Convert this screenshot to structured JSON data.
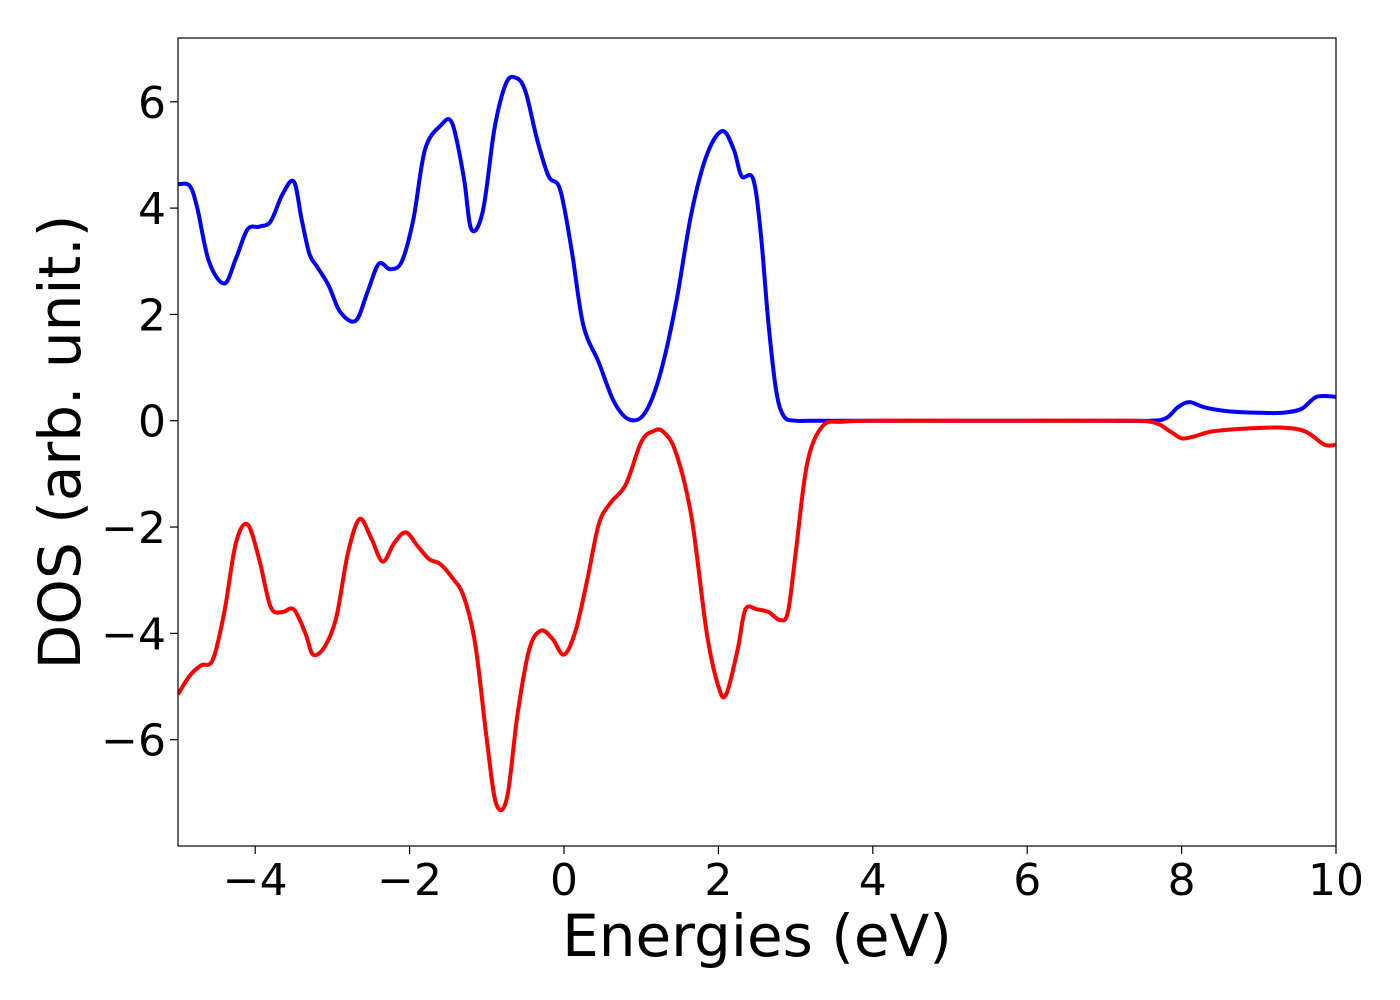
{
  "chart_data": {
    "type": "line",
    "xlabel": "Energies (eV)",
    "ylabel": "DOS (arb. unit.)",
    "xlim": [
      -5,
      10
    ],
    "ylim": [
      -8,
      7.2
    ],
    "grid": false,
    "x_ticks": [
      -4,
      -2,
      0,
      2,
      4,
      6,
      8,
      10
    ],
    "x_tick_labels": [
      "−4",
      "−2",
      "0",
      "2",
      "4",
      "6",
      "8",
      "10"
    ],
    "y_ticks": [
      -6,
      -4,
      -2,
      0,
      2,
      4,
      6
    ],
    "y_tick_labels": [
      "−6",
      "−4",
      "−2",
      "0",
      "2",
      "4",
      "6"
    ],
    "series": [
      {
        "color": "#0000ff",
        "x": [
          -5.0,
          -4.85,
          -4.75,
          -4.6,
          -4.4,
          -4.25,
          -4.1,
          -3.95,
          -3.8,
          -3.65,
          -3.5,
          -3.4,
          -3.3,
          -3.2,
          -3.05,
          -2.9,
          -2.7,
          -2.55,
          -2.4,
          -2.25,
          -2.1,
          -1.95,
          -1.8,
          -1.6,
          -1.45,
          -1.3,
          -1.2,
          -1.05,
          -0.9,
          -0.75,
          -0.62,
          -0.5,
          -0.35,
          -0.2,
          -0.05,
          0.1,
          0.25,
          0.45,
          0.65,
          0.85,
          1.05,
          1.25,
          1.45,
          1.65,
          1.85,
          2.05,
          2.2,
          2.3,
          2.45,
          2.55,
          2.65,
          2.75,
          2.85,
          3.0,
          3.2,
          3.5,
          4.0,
          5.0,
          6.0,
          7.0,
          7.6,
          7.8,
          7.95,
          8.1,
          8.3,
          8.6,
          9.0,
          9.3,
          9.55,
          9.75,
          10.0
        ],
        "y": [
          4.45,
          4.42,
          4.0,
          3.0,
          2.58,
          3.05,
          3.6,
          3.65,
          3.75,
          4.25,
          4.5,
          3.8,
          3.15,
          2.9,
          2.55,
          2.05,
          1.88,
          2.4,
          2.95,
          2.85,
          3.0,
          3.8,
          5.1,
          5.55,
          5.6,
          4.6,
          3.6,
          3.95,
          5.5,
          6.35,
          6.45,
          6.2,
          5.3,
          4.6,
          4.35,
          3.2,
          1.8,
          1.1,
          0.35,
          0.02,
          0.15,
          0.9,
          2.2,
          3.9,
          5.0,
          5.45,
          5.1,
          4.6,
          4.55,
          3.5,
          1.8,
          0.55,
          0.08,
          0.0,
          0.0,
          0.0,
          0.0,
          0.0,
          0.0,
          0.0,
          0.0,
          0.05,
          0.25,
          0.35,
          0.25,
          0.18,
          0.15,
          0.15,
          0.22,
          0.45,
          0.45
        ]
      },
      {
        "color": "#ff0000",
        "x": [
          -5.0,
          -4.85,
          -4.7,
          -4.55,
          -4.4,
          -4.25,
          -4.1,
          -3.95,
          -3.8,
          -3.65,
          -3.5,
          -3.35,
          -3.25,
          -3.1,
          -2.95,
          -2.8,
          -2.65,
          -2.5,
          -2.35,
          -2.2,
          -2.05,
          -1.9,
          -1.75,
          -1.6,
          -1.45,
          -1.3,
          -1.15,
          -1.0,
          -0.88,
          -0.74,
          -0.6,
          -0.45,
          -0.3,
          -0.15,
          0.0,
          0.15,
          0.3,
          0.45,
          0.6,
          0.8,
          1.0,
          1.15,
          1.28,
          1.45,
          1.65,
          1.85,
          2.0,
          2.1,
          2.25,
          2.35,
          2.5,
          2.65,
          2.8,
          2.9,
          3.0,
          3.15,
          3.35,
          3.6,
          4.0,
          5.0,
          6.0,
          7.0,
          7.6,
          7.85,
          8.0,
          8.15,
          8.4,
          8.8,
          9.3,
          9.6,
          9.85,
          10.0
        ],
        "y": [
          -5.15,
          -4.8,
          -4.6,
          -4.5,
          -3.6,
          -2.3,
          -1.95,
          -2.6,
          -3.5,
          -3.6,
          -3.55,
          -4.0,
          -4.4,
          -4.25,
          -3.7,
          -2.5,
          -1.85,
          -2.2,
          -2.65,
          -2.3,
          -2.1,
          -2.35,
          -2.6,
          -2.7,
          -2.95,
          -3.3,
          -4.2,
          -6.0,
          -7.2,
          -7.1,
          -5.5,
          -4.3,
          -3.95,
          -4.1,
          -4.4,
          -3.95,
          -3.0,
          -1.95,
          -1.55,
          -1.2,
          -0.4,
          -0.2,
          -0.2,
          -0.6,
          -1.8,
          -4.0,
          -5.0,
          -5.15,
          -4.3,
          -3.55,
          -3.55,
          -3.6,
          -3.75,
          -3.6,
          -2.5,
          -0.8,
          -0.1,
          -0.02,
          0.0,
          0.0,
          0.0,
          0.0,
          -0.02,
          -0.2,
          -0.33,
          -0.3,
          -0.2,
          -0.15,
          -0.13,
          -0.2,
          -0.45,
          -0.45
        ]
      }
    ]
  }
}
